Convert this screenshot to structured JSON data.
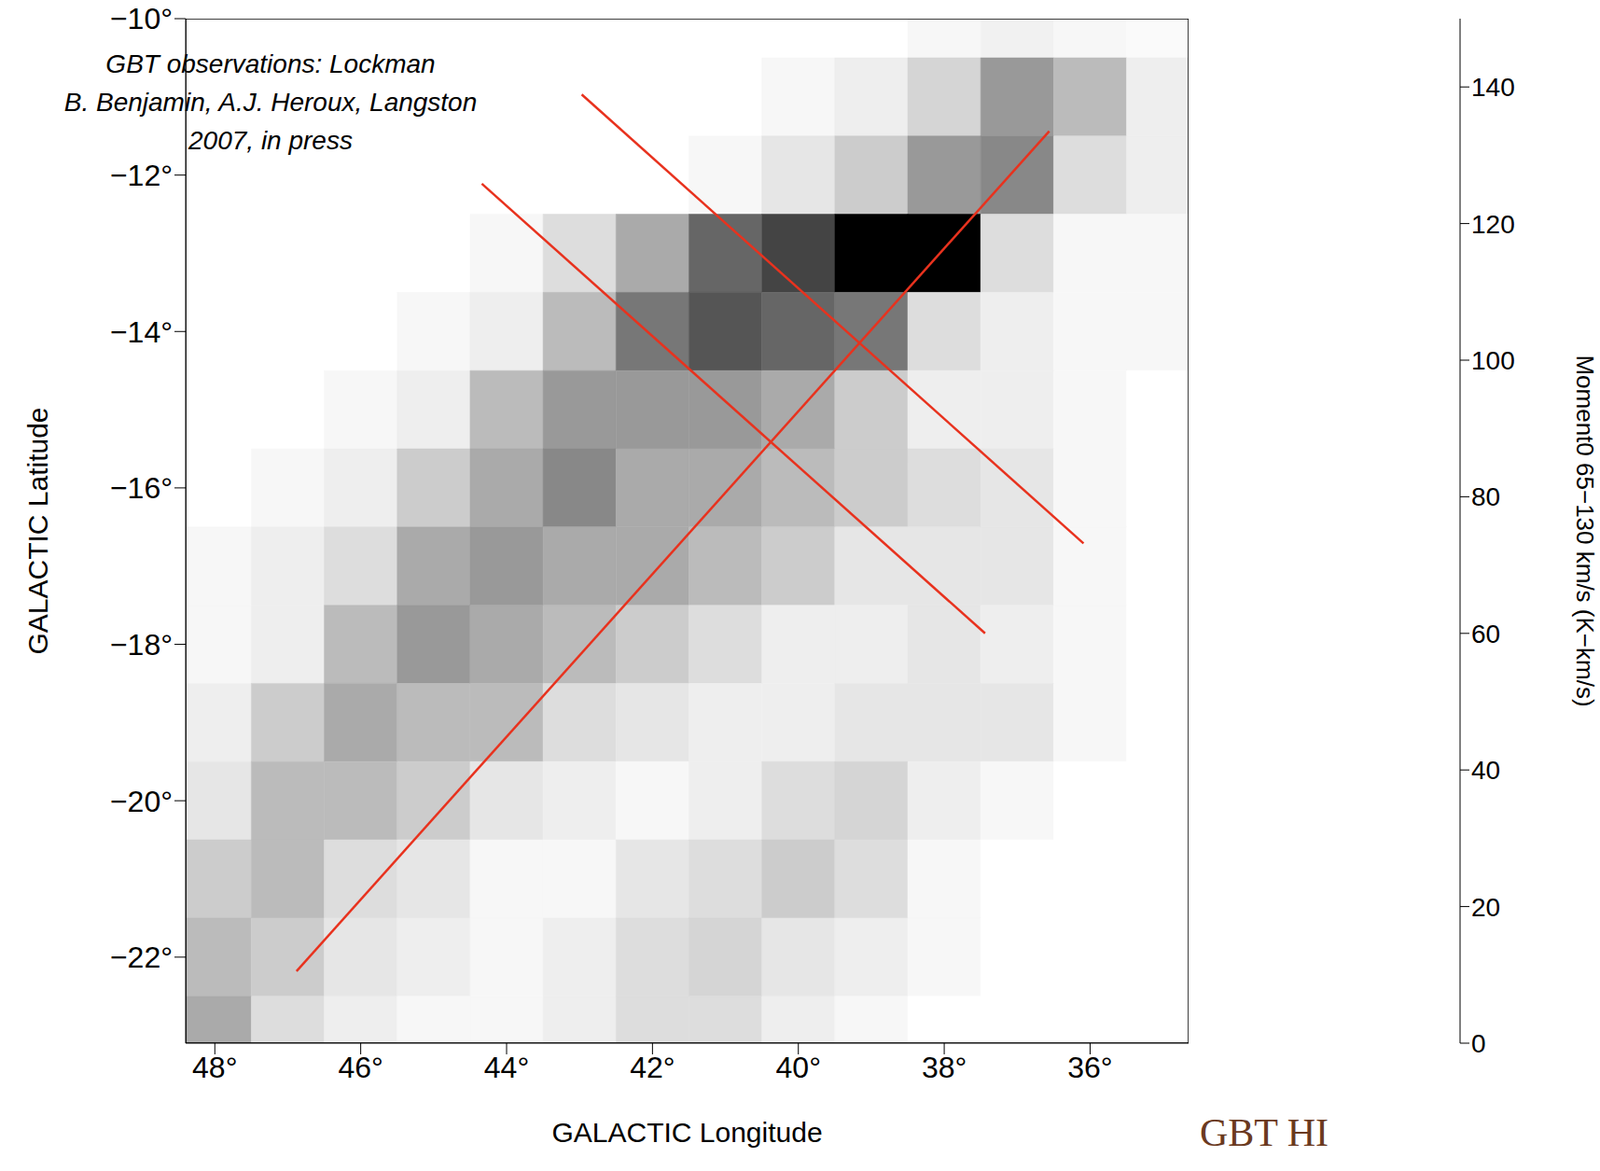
{
  "chart_data": {
    "type": "heatmap",
    "xlabel": "GALACTIC Longitude",
    "ylabel": "GALACTIC Latitude",
    "annotations": [
      "GBT observations: Lockman",
      "B. Benjamin, A.J. Heroux, Langston",
      "2007, in press"
    ],
    "footer": "GBT HI",
    "xlim": [
      48.4,
      34.65
    ],
    "ylim": [
      -23.1,
      -10
    ],
    "xticks": [
      {
        "value": 48,
        "label": "48°"
      },
      {
        "value": 46,
        "label": "46°"
      },
      {
        "value": 44,
        "label": "44°"
      },
      {
        "value": 42,
        "label": "42°"
      },
      {
        "value": 40,
        "label": "40°"
      },
      {
        "value": 38,
        "label": "38°"
      },
      {
        "value": 36,
        "label": "36°"
      }
    ],
    "yticks": [
      {
        "value": -10,
        "label": "−10°"
      },
      {
        "value": -12,
        "label": "−12°"
      },
      {
        "value": -14,
        "label": "−14°"
      },
      {
        "value": -16,
        "label": "−16°"
      },
      {
        "value": -18,
        "label": "−18°"
      },
      {
        "value": -20,
        "label": "−20°"
      },
      {
        "value": -22,
        "label": "−22°"
      }
    ],
    "x": [
      48,
      47,
      46,
      45,
      44,
      43,
      42,
      41,
      40,
      39,
      38,
      37,
      36,
      35
    ],
    "y": [
      -10,
      -11,
      -12,
      -13,
      -14,
      -15,
      -16,
      -17,
      -18,
      -19,
      -20,
      -21,
      -22,
      -23
    ],
    "z": [
      [
        0,
        0,
        0,
        0,
        0,
        0,
        0,
        0,
        0,
        0,
        5,
        8,
        5,
        3
      ],
      [
        0,
        0,
        0,
        0,
        0,
        0,
        0,
        0,
        5,
        10,
        25,
        60,
        40,
        10
      ],
      [
        0,
        0,
        0,
        0,
        0,
        0,
        0,
        5,
        15,
        30,
        60,
        70,
        20,
        10
      ],
      [
        0,
        0,
        0,
        0,
        5,
        20,
        50,
        90,
        110,
        150,
        150,
        20,
        5,
        5
      ],
      [
        0,
        0,
        0,
        5,
        10,
        40,
        80,
        100,
        90,
        80,
        20,
        10,
        5,
        5
      ],
      [
        0,
        0,
        5,
        10,
        40,
        60,
        60,
        60,
        50,
        30,
        10,
        10,
        5,
        0
      ],
      [
        0,
        5,
        10,
        30,
        50,
        70,
        50,
        50,
        40,
        30,
        20,
        15,
        5,
        0
      ],
      [
        5,
        10,
        20,
        50,
        60,
        50,
        50,
        40,
        30,
        15,
        15,
        15,
        5,
        0
      ],
      [
        5,
        10,
        40,
        60,
        50,
        40,
        30,
        20,
        10,
        10,
        15,
        10,
        5,
        0
      ],
      [
        10,
        30,
        50,
        40,
        40,
        20,
        15,
        10,
        10,
        15,
        15,
        15,
        5,
        0
      ],
      [
        15,
        40,
        40,
        30,
        15,
        10,
        5,
        10,
        20,
        25,
        10,
        5,
        0,
        0
      ],
      [
        30,
        40,
        20,
        15,
        5,
        5,
        15,
        20,
        30,
        20,
        5,
        0,
        0,
        0
      ],
      [
        40,
        30,
        15,
        10,
        5,
        10,
        20,
        25,
        15,
        10,
        5,
        0,
        0,
        0
      ],
      [
        50,
        20,
        10,
        5,
        5,
        10,
        20,
        20,
        10,
        5,
        0,
        0,
        0,
        0
      ]
    ],
    "colorbar": {
      "label": "Moment0 65−130 km/s (K−km/s)",
      "range": [
        0,
        150
      ],
      "ticks": [
        0,
        20,
        40,
        60,
        80,
        100,
        120,
        140
      ]
    },
    "series": [
      {
        "type": "line",
        "color": "#e8321e",
        "values": [
          [
            42.97,
            -10.97
          ],
          [
            36.09,
            -16.71
          ]
        ]
      },
      {
        "type": "line",
        "color": "#e8321e",
        "values": [
          [
            44.34,
            -12.11
          ],
          [
            37.44,
            -17.86
          ]
        ]
      },
      {
        "type": "line",
        "color": "#e8321e",
        "values": [
          [
            46.88,
            -22.18
          ],
          [
            36.56,
            -11.44
          ]
        ]
      }
    ]
  }
}
